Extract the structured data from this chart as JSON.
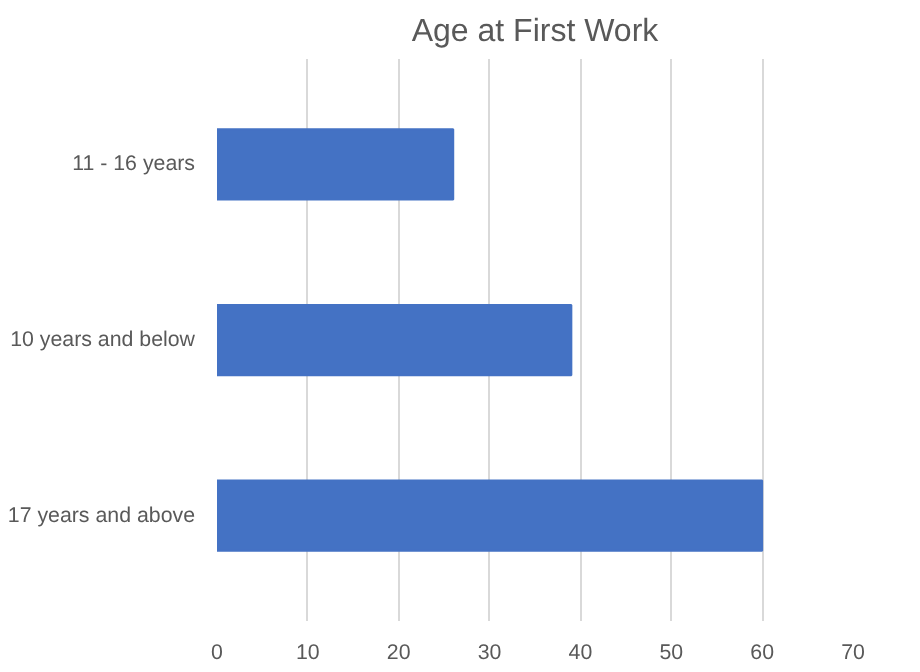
{
  "chart_data": {
    "type": "bar",
    "orientation": "horizontal",
    "title": "Age at First Work",
    "categories": [
      "11 - 16 years",
      "10 years and below",
      "17 years and above"
    ],
    "values": [
      26,
      39,
      60
    ],
    "color": "#4472c4",
    "xlim": [
      0,
      70
    ],
    "xticks": [
      0,
      10,
      20,
      30,
      40,
      50,
      60,
      70
    ],
    "grid": "x"
  }
}
